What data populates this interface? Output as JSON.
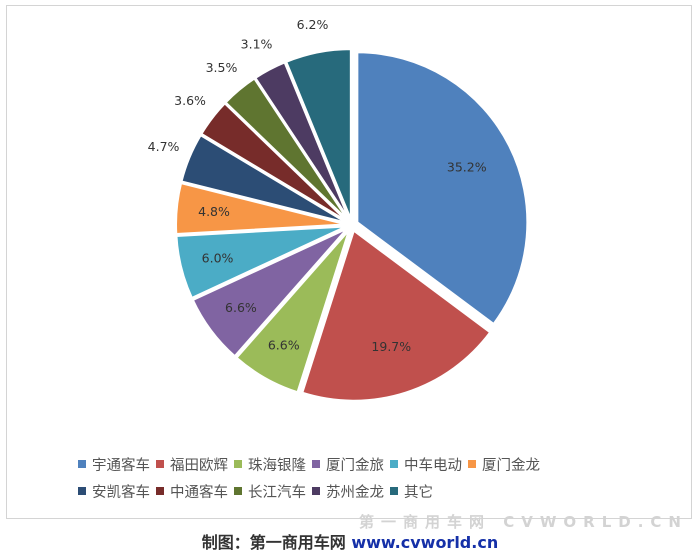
{
  "chart_data": {
    "type": "pie",
    "title": "",
    "legend_position": "bottom",
    "slices": [
      {
        "label": "宇通客车",
        "value": 35.2,
        "display": "35.2%",
        "color": "#4f81bd"
      },
      {
        "label": "福田欧辉",
        "value": 19.7,
        "display": "19.7%",
        "color": "#c0504d"
      },
      {
        "label": "珠海银隆",
        "value": 6.6,
        "display": "6.6%",
        "color": "#9bbb59"
      },
      {
        "label": "厦门金旅",
        "value": 6.6,
        "display": "6.6%",
        "color": "#8064a2"
      },
      {
        "label": "中车电动",
        "value": 6.0,
        "display": "6.0%",
        "color": "#4bacc6"
      },
      {
        "label": "厦门金龙",
        "value": 4.8,
        "display": "4.8%",
        "color": "#f79646"
      },
      {
        "label": "安凯客车",
        "value": 4.7,
        "display": "4.7%",
        "color": "#2c4d75"
      },
      {
        "label": "中通客车",
        "value": 3.6,
        "display": "3.6%",
        "color": "#772c2a"
      },
      {
        "label": "长江汽车",
        "value": 3.5,
        "display": "3.5%",
        "color": "#5f7530"
      },
      {
        "label": "苏州金龙",
        "value": 3.1,
        "display": "3.1%",
        "color": "#4d3b62"
      },
      {
        "label": "其它",
        "value": 6.2,
        "display": "6.2%",
        "color": "#276a7c"
      }
    ]
  },
  "caption": {
    "prefix": "制图：第一商用车网 ",
    "site": "www.cvworld.cn"
  },
  "watermark": "第一商用车网 CVWORLD.CN"
}
